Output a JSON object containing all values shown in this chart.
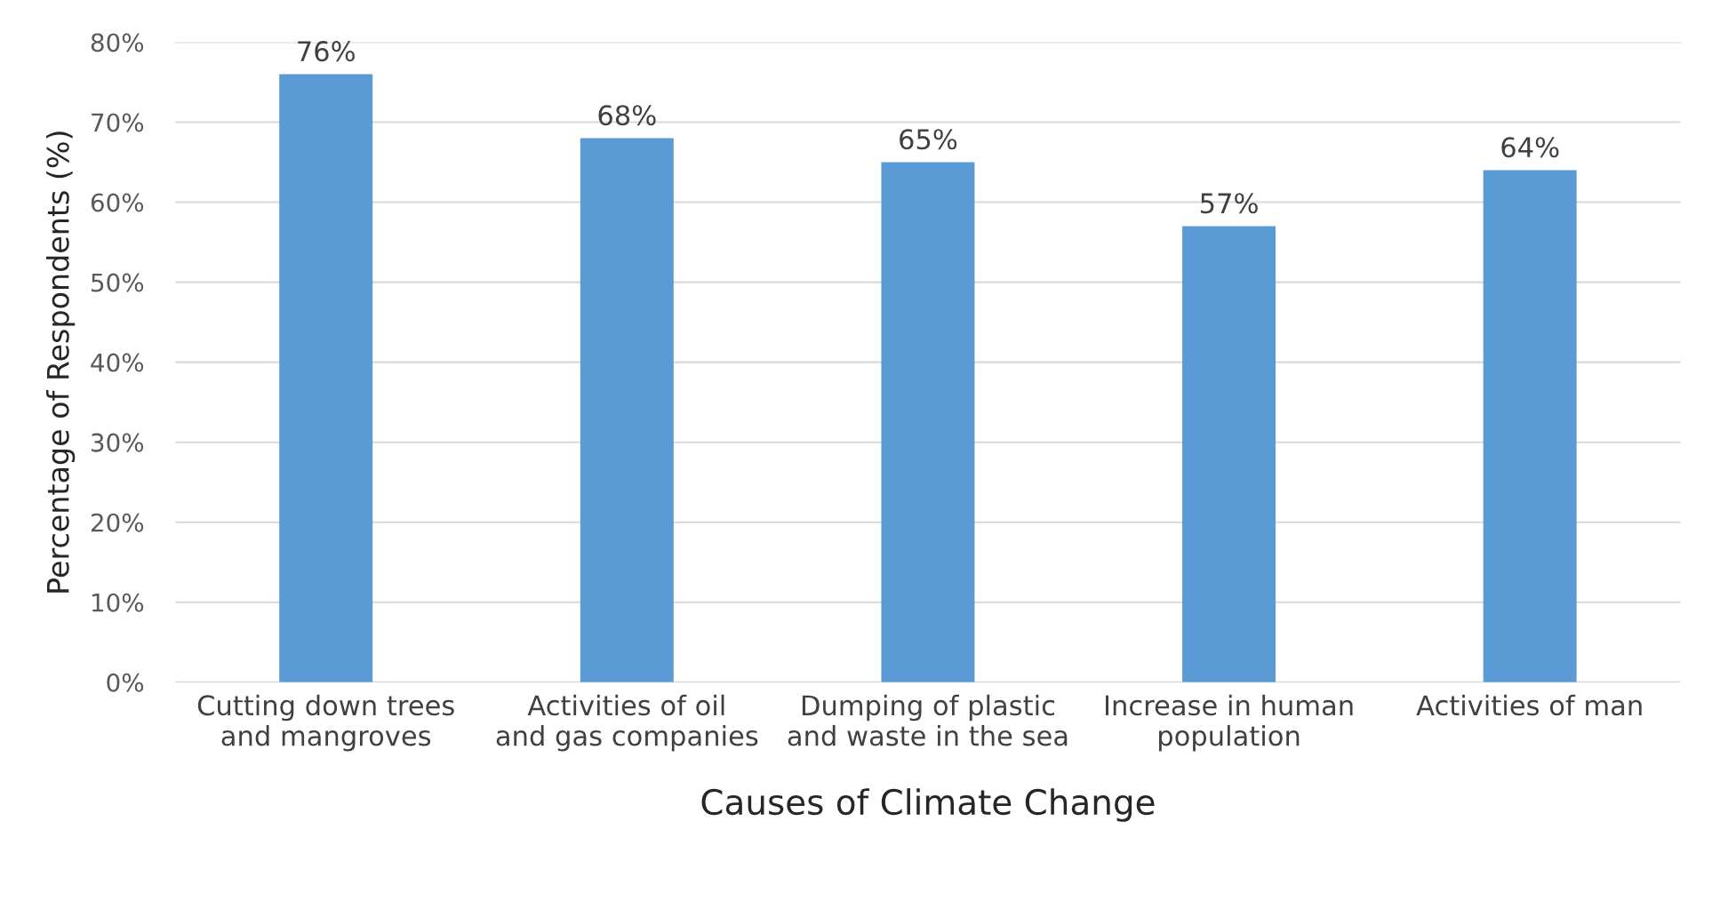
{
  "chart_data": {
    "type": "bar",
    "xlabel": "Causes of Climate Change",
    "ylabel": "Percentage of Respondents (%)",
    "categories": [
      "Cutting down trees and mangroves",
      "Activities of oil and gas companies",
      "Dumping of plastic and waste in the sea",
      "Increase in human population",
      "Activities of man"
    ],
    "values": [
      76,
      68,
      65,
      57,
      64
    ],
    "value_labels": [
      "76%",
      "68%",
      "65%",
      "57%",
      "64%"
    ],
    "color": "#5b9bd5",
    "ylim": [
      0,
      80
    ],
    "yticks": [
      {
        "value": 0,
        "label": "0%"
      },
      {
        "value": 10,
        "label": "10%"
      },
      {
        "value": 20,
        "label": "20%"
      },
      {
        "value": 30,
        "label": "30%"
      },
      {
        "value": 40,
        "label": "40%"
      },
      {
        "value": 50,
        "label": "50%"
      },
      {
        "value": 60,
        "label": "60%"
      },
      {
        "value": 70,
        "label": "70%"
      },
      {
        "value": 80,
        "label": "80%"
      }
    ],
    "grid": "y",
    "legend": false
  }
}
